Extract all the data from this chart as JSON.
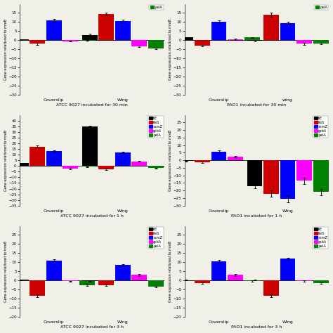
{
  "panels": [
    {
      "title": "ATCC 9027 incubated for 30 min",
      "xlabel_groups": [
        "Coverslip",
        "Wing"
      ],
      "ylim": [
        -30,
        20
      ],
      "yticks": [
        -30,
        -25,
        -20,
        -15,
        -10,
        -5,
        0,
        5,
        10,
        15
      ],
      "ylabel": "Gene expression relativred to mreB",
      "show_legend": false,
      "partial_legend": true,
      "legend_items": [
        "pelA"
      ],
      "data": {
        "Coverslip": {
          "flE": 0.3,
          "fleS": -2.0,
          "rsmZ": 11.0,
          "gcbA": -0.5,
          "pelA": -0.2
        },
        "Wing": {
          "flE": 3.0,
          "fleS": 14.5,
          "rsmZ": 10.5,
          "gcbA": -3.5,
          "pelA": -4.5
        }
      },
      "errors": {
        "Coverslip": {
          "flE": 0.3,
          "fleS": 0.5,
          "rsmZ": 0.8,
          "gcbA": 0.3,
          "pelA": 0.2
        },
        "Wing": {
          "flE": 0.4,
          "fleS": 0.7,
          "rsmZ": 0.9,
          "gcbA": 0.4,
          "pelA": 0.5
        }
      }
    },
    {
      "title": "PAO1 incubated for 30 min",
      "xlabel_groups": [
        "Coverslip",
        "wing"
      ],
      "ylim": [
        -30,
        20
      ],
      "yticks": [
        -30,
        -25,
        -20,
        -15,
        -10,
        -5,
        0,
        5,
        10,
        15
      ],
      "ylabel": "Gene expression relativred to mreB",
      "show_legend": false,
      "partial_legend": true,
      "legend_items": [
        "pelA"
      ],
      "data": {
        "Coverslip": {
          "flE": 1.5,
          "fleS": -3.0,
          "rsmZ": 10.0,
          "gcbA": 0.5,
          "pelA": 1.5
        },
        "wing": {
          "flE": -0.3,
          "fleS": 14.0,
          "rsmZ": 9.5,
          "gcbA": -2.0,
          "pelA": -2.0
        }
      },
      "errors": {
        "Coverslip": {
          "flE": 0.3,
          "fleS": 0.5,
          "rsmZ": 0.8,
          "gcbA": 0.3,
          "pelA": 0.3
        },
        "wing": {
          "flE": 0.3,
          "fleS": 1.0,
          "rsmZ": 0.7,
          "gcbA": 0.5,
          "pelA": 0.4
        }
      }
    },
    {
      "title": "ATCC 9027 incubated for 1 h",
      "xlabel_groups": [
        "Coverslip",
        "Wing"
      ],
      "ylim": [
        -35,
        45
      ],
      "yticks": [
        -35,
        -30,
        -25,
        -20,
        -15,
        -10,
        -5,
        0,
        5,
        10,
        15,
        20,
        25,
        30,
        35,
        40
      ],
      "ylabel": "Gene expression relativred to mreB",
      "show_legend": true,
      "partial_legend": false,
      "legend_items": [
        "flE",
        "fleS",
        "rsmZ",
        "gcbA",
        "pelA"
      ],
      "data": {
        "Coverslip": {
          "flE": 2.5,
          "fleS": 17.0,
          "rsmZ": 13.0,
          "gcbA": -2.5,
          "pelA": -0.5
        },
        "Wing": {
          "flE": 35.0,
          "fleS": -3.0,
          "rsmZ": 12.0,
          "gcbA": 4.0,
          "pelA": -2.0
        }
      },
      "errors": {
        "Coverslip": {
          "flE": 0.4,
          "fleS": 1.0,
          "rsmZ": 0.8,
          "gcbA": 0.5,
          "pelA": 0.3
        },
        "Wing": {
          "flE": 0.5,
          "fleS": 0.5,
          "rsmZ": 0.7,
          "gcbA": 0.4,
          "pelA": 0.4
        }
      }
    },
    {
      "title": "PAO1 incubated for 1 h",
      "xlabel_groups": [
        "Coverslip",
        "Wing"
      ],
      "ylim": [
        -30,
        30
      ],
      "yticks": [
        -30,
        -25,
        -20,
        -15,
        -10,
        -5,
        0,
        5,
        10,
        15,
        20,
        25
      ],
      "ylabel": "Gene expression relativred to mreB",
      "show_legend": true,
      "partial_legend": false,
      "legend_items": [
        "flE",
        "fleS",
        "rsmZ",
        "gcbA",
        "pelA"
      ],
      "data": {
        "Coverslip": {
          "flE": -0.5,
          "fleS": -1.5,
          "rsmZ": 5.5,
          "gcbA": 2.5,
          "pelA": -0.5
        },
        "Wing": {
          "flE": -17.0,
          "fleS": -22.0,
          "rsmZ": -25.5,
          "gcbA": -13.5,
          "pelA": -21.0
        }
      },
      "errors": {
        "Coverslip": {
          "flE": 0.3,
          "fleS": 0.5,
          "rsmZ": 1.0,
          "gcbA": 0.4,
          "pelA": 0.3
        },
        "Wing": {
          "flE": 1.5,
          "fleS": 2.0,
          "rsmZ": 2.5,
          "gcbA": 2.0,
          "pelA": 2.0
        }
      }
    },
    {
      "title": "ATCC 9027 incubated for 3 h",
      "xlabel_groups": [
        "Coverslip",
        "Wing"
      ],
      "ylim": [
        -20,
        30
      ],
      "yticks": [
        -20,
        -15,
        -10,
        -5,
        0,
        5,
        10,
        15,
        20,
        25
      ],
      "ylabel": "Gene expression relativred to mreB",
      "show_legend": true,
      "partial_legend": false,
      "legend_items": [
        "flE",
        "fleS",
        "rsmZ",
        "gcbA",
        "pelA"
      ],
      "data": {
        "Coverslip": {
          "flE": 0.3,
          "fleS": -8.5,
          "rsmZ": 11.0,
          "gcbA": -0.5,
          "pelA": -2.5
        },
        "Wing": {
          "flE": -0.5,
          "fleS": -2.5,
          "rsmZ": 8.5,
          "gcbA": 3.0,
          "pelA": -3.5
        }
      },
      "errors": {
        "Coverslip": {
          "flE": 0.3,
          "fleS": 0.8,
          "rsmZ": 0.7,
          "gcbA": 0.3,
          "pelA": 0.4
        },
        "Wing": {
          "flE": 0.3,
          "fleS": 0.5,
          "rsmZ": 0.6,
          "gcbA": 0.5,
          "pelA": 0.4
        }
      }
    },
    {
      "title": "PAO1 incubated for 3 h",
      "xlabel_groups": [
        "Coverslip",
        "Wing"
      ],
      "ylim": [
        -20,
        30
      ],
      "yticks": [
        -20,
        -15,
        -10,
        -5,
        0,
        5,
        10,
        15,
        20,
        25
      ],
      "ylabel": "Gene expression relativred to mreB",
      "show_legend": true,
      "partial_legend": false,
      "legend_items": [
        "flE",
        "fleS",
        "rsmZ",
        "gcbA",
        "pelA"
      ],
      "data": {
        "Coverslip": {
          "flE": 0.2,
          "fleS": -1.5,
          "rsmZ": 10.5,
          "gcbA": 3.0,
          "pelA": -0.3
        },
        "Wing": {
          "flE": 0.2,
          "fleS": -8.5,
          "rsmZ": 12.0,
          "gcbA": -0.5,
          "pelA": -1.5
        }
      },
      "errors": {
        "Coverslip": {
          "flE": 0.2,
          "fleS": 0.4,
          "rsmZ": 0.7,
          "gcbA": 0.5,
          "pelA": 0.3
        },
        "Wing": {
          "flE": 0.2,
          "fleS": 0.8,
          "rsmZ": 0.6,
          "gcbA": 0.4,
          "pelA": 0.3
        }
      }
    }
  ],
  "gene_colors": {
    "flE": "#000000",
    "fleS": "#cc0000",
    "rsmZ": "#0000ff",
    "gcbA": "#ff00ff",
    "pelA": "#008000"
  },
  "genes": [
    "flE",
    "fleS",
    "rsmZ",
    "gcbA",
    "pelA"
  ],
  "bar_width": 0.12,
  "background_color": "#f0f0e8"
}
